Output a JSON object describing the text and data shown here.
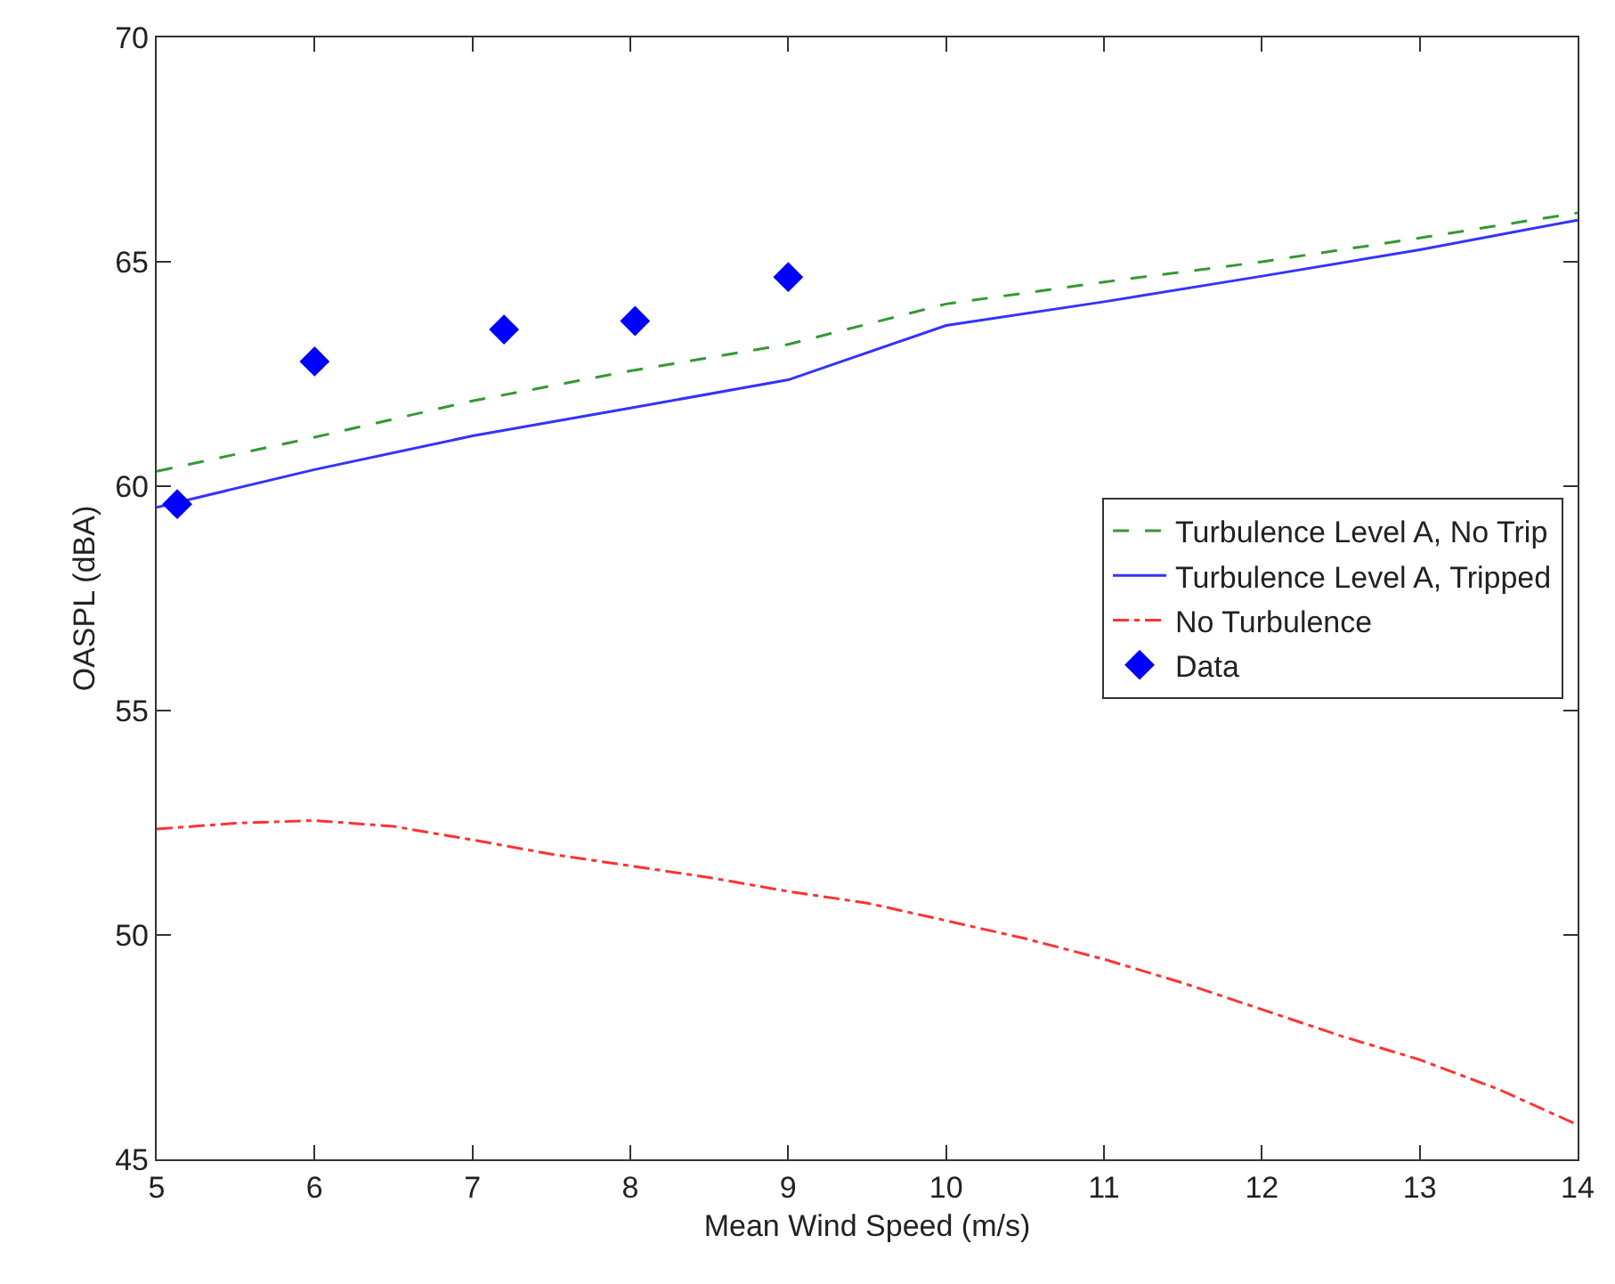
{
  "chart_data": {
    "type": "line",
    "xlabel": "Mean Wind Speed (m/s)",
    "ylabel": "OASPL (dBA)",
    "xlim": [
      5,
      14
    ],
    "xticks": [
      5,
      6,
      7,
      8,
      9,
      10,
      11,
      12,
      13,
      14
    ],
    "ylim": [
      45,
      70
    ],
    "yticks": [
      45,
      50,
      55,
      60,
      65,
      70
    ],
    "grid": false,
    "legend": "right",
    "series": [
      {
        "name": "Turbulence Level A, No Trip",
        "color": "#339933",
        "line_style": "dashed",
        "marker": "none",
        "x": [
          5,
          6,
          7,
          8,
          9,
          10,
          11,
          12,
          13,
          14
        ],
        "values": [
          60.33,
          61.09,
          61.9,
          62.57,
          63.16,
          64.06,
          64.55,
          65.0,
          65.53,
          66.09
        ]
      },
      {
        "name": "Turbulence Level A, Tripped",
        "color": "#3333ff",
        "line_style": "solid",
        "marker": "none",
        "x": [
          5,
          6,
          7,
          8,
          9,
          10,
          11,
          12,
          13,
          14
        ],
        "values": [
          59.53,
          60.37,
          61.12,
          61.74,
          62.37,
          63.58,
          64.11,
          64.68,
          65.27,
          65.93
        ]
      },
      {
        "name": "No Turbulence",
        "color": "#ff3333",
        "line_style": "dashdot",
        "marker": "none",
        "x": [
          5,
          5.5,
          6,
          6.5,
          7,
          7.5,
          8,
          8.5,
          9,
          9.5,
          10,
          10.5,
          11,
          11.5,
          12,
          12.5,
          13,
          13.5,
          14
        ],
        "values": [
          52.36,
          52.49,
          52.55,
          52.42,
          52.12,
          51.8,
          51.54,
          51.28,
          50.97,
          50.71,
          50.32,
          49.92,
          49.46,
          48.93,
          48.34,
          47.75,
          47.22,
          46.56,
          45.77
        ]
      },
      {
        "name": "Data",
        "type": "scatter",
        "color": "#0000ff",
        "marker": "diamond",
        "x": [
          5.13,
          6.0,
          7.2,
          8.03,
          9.0
        ],
        "values": [
          59.6,
          62.78,
          63.49,
          63.68,
          64.66
        ]
      }
    ]
  }
}
